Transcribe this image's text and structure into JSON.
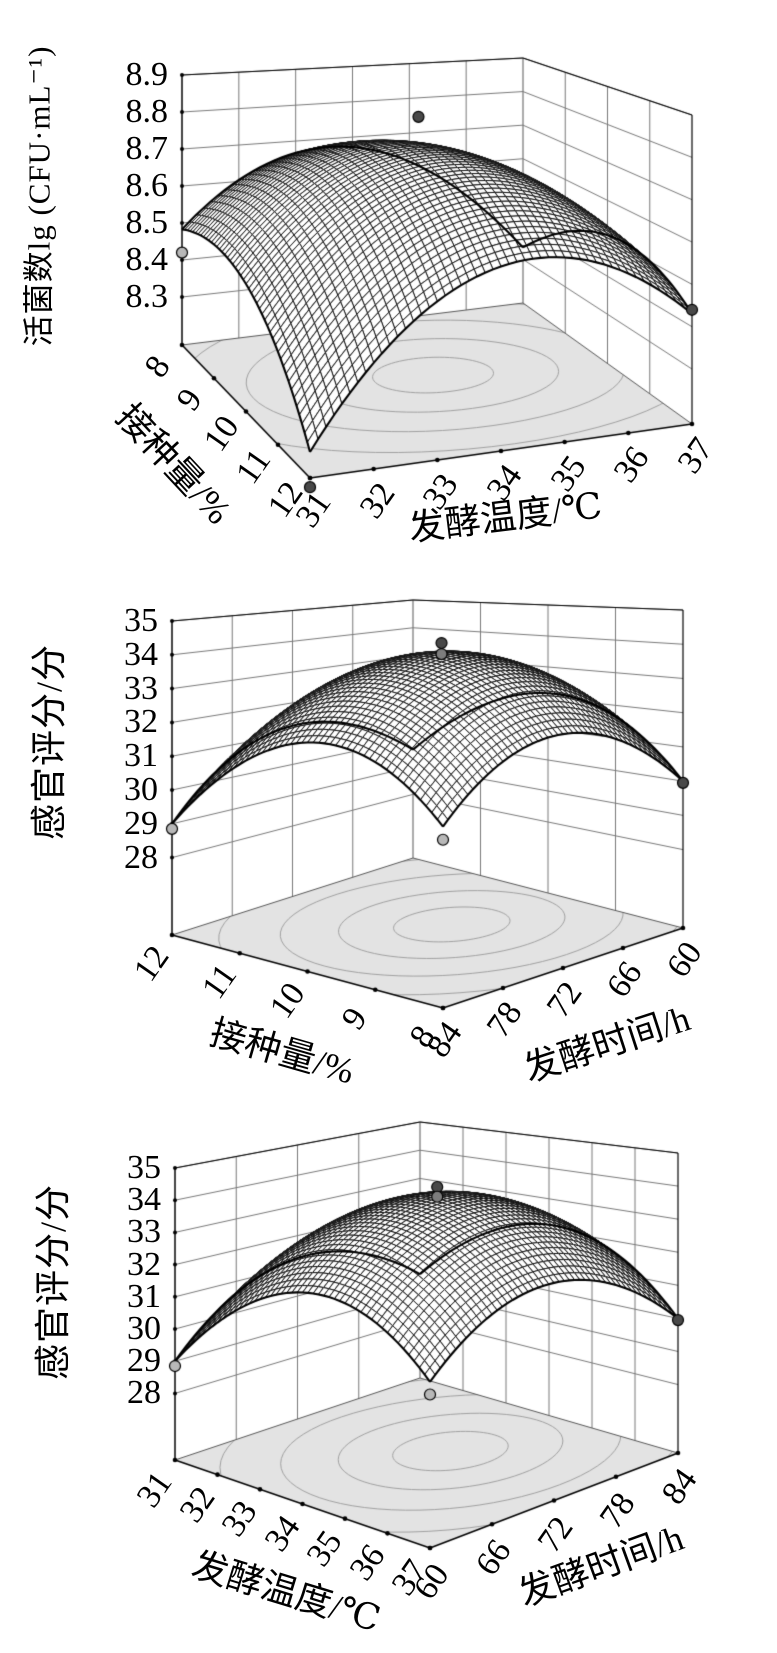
{
  "figure": {
    "description": "Three black-and-white 3D response-surface plots (mesh surface over contour floor) stacked vertically",
    "panel_count": 3
  },
  "colors": {
    "background": "#ffffff",
    "floor_fill": "#e3e3e3",
    "contour_line": "#a0a0a0",
    "wall_grid": "#777777",
    "frame": "#000000",
    "mesh_line": "#111111",
    "mesh_cell": "#ffffff",
    "marker_dark": "#484848",
    "marker_mid": "#7d7d7d",
    "marker_light": "#b8b8b8"
  },
  "chart_data": [
    {
      "type": "surface3d",
      "z_axis": {
        "label": "活菌数lg (CFU·mL⁻¹)",
        "ticks": [
          8.3,
          8.4,
          8.5,
          8.6,
          8.7,
          8.8,
          8.9
        ],
        "range": [
          8.3,
          8.9
        ]
      },
      "left_axis": {
        "label": "接种量/%",
        "ticks": [
          8,
          9,
          10,
          11,
          12
        ]
      },
      "right_axis": {
        "label": "发酵温度/℃",
        "ticks": [
          31,
          32,
          33,
          34,
          35,
          36,
          37
        ]
      },
      "surface_model": {
        "form": "z = zp + A*(s-s0)^2 + B*(t-t0)^2 + C*(s-s0)*(t-t0); s: right axis 31→37, t: left axis 8→12",
        "zp": 8.76,
        "s0": 0.5,
        "t0": 0.42,
        "A": -1.05,
        "B": -0.5,
        "C": 0.35,
        "corner_values": {
          "temp31_inoc8": 8.48,
          "temp31_inoc12": 8.23,
          "temp37_inoc12": 8.43,
          "temp37_inoc8": 8.34
        },
        "peak_value": 8.76
      },
      "design_points": [
        {
          "x": 31,
          "y": 8,
          "z": 8.42,
          "shade": "light"
        },
        {
          "x": 31,
          "y": 12,
          "z": 8.15,
          "shade": "dark"
        },
        {
          "x": 37,
          "y": 12,
          "z": 8.44,
          "shade": "dark"
        },
        {
          "x": 34.3,
          "y": 9.3,
          "z": 8.82,
          "shade": "dark"
        }
      ],
      "floor_contours": {
        "center_s": 0.55,
        "center_t": 0.42,
        "radii": [
          0.16,
          0.33,
          0.5,
          0.68
        ]
      }
    },
    {
      "type": "surface3d",
      "z_axis": {
        "label": "感官评分/分",
        "ticks": [
          28,
          29,
          30,
          31,
          32,
          33,
          34,
          35
        ],
        "range": [
          28,
          35
        ]
      },
      "left_axis": {
        "label": "接种量/%",
        "ticks": [
          12,
          11,
          10,
          9,
          8
        ]
      },
      "right_axis": {
        "label": "发酵时间/h",
        "ticks": [
          84,
          78,
          72,
          66,
          60
        ]
      },
      "surface_model": {
        "form": "z = zp + A*(s-s0)^2 + B*(t-t0)^2 + C*(s-s0)*(t-t0); s: right axis 84→60, t: left axis 12→8",
        "zp": 34.1,
        "s0": 0.5,
        "t0": 0.55,
        "A": -7.8,
        "B": -9.4,
        "C": -1.11,
        "corner_values": {
          "time84_inoc12": 29.0,
          "time84_inoc8": 30.5,
          "time60_inoc8": 30.0,
          "time60_inoc12": 29.6
        },
        "peak_value": 34.1
      },
      "design_points": [
        {
          "x": 84,
          "y": 12,
          "z": 28.85,
          "shade": "light"
        },
        {
          "x": 84,
          "y": 8,
          "z": 30.15,
          "shade": "light"
        },
        {
          "x": 60,
          "y": 8,
          "z": 29.95,
          "shade": "dark"
        },
        {
          "x": 71.3,
          "y": 9.9,
          "z": 34.35,
          "shade": "dark"
        },
        {
          "x": 71.3,
          "y": 9.9,
          "z": 34.02,
          "shade": "mid"
        }
      ],
      "floor_contours": {
        "center_s": 0.6,
        "center_t": 0.5,
        "radii": [
          0.18,
          0.35,
          0.53,
          0.72
        ]
      }
    },
    {
      "type": "surface3d",
      "z_axis": {
        "label": "感官评分/分",
        "ticks": [
          28,
          29,
          30,
          31,
          32,
          33,
          34,
          35
        ],
        "range": [
          28,
          35
        ]
      },
      "left_axis": {
        "label": "发酵温度/℃",
        "ticks": [
          31,
          32,
          33,
          34,
          35,
          36,
          37
        ]
      },
      "right_axis": {
        "label": "发酵时间/h",
        "ticks": [
          60,
          66,
          72,
          78,
          84
        ]
      },
      "surface_model": {
        "form": "z = zp + A*(s-s0)^2 + B*(t-t0)^2 + C*(s-s0)*(t-t0); s: right axis 60→84, t: left axis 31→37",
        "zp": 34.1,
        "s0": 0.5,
        "t0": 0.55,
        "A": -7.8,
        "B": -9.4,
        "C": -1.11,
        "corner_values": {
          "time60_temp31": 29.0,
          "time60_temp37": 30.5,
          "time84_temp37": 30.0,
          "time84_temp31": 29.6
        },
        "peak_value": 34.1
      },
      "design_points": [
        {
          "x": 60,
          "y": 31,
          "z": 28.85,
          "shade": "light"
        },
        {
          "x": 60,
          "y": 37,
          "z": 30.15,
          "shade": "light"
        },
        {
          "x": 84,
          "y": 37,
          "z": 29.95,
          "shade": "dark"
        },
        {
          "x": 72.7,
          "y": 34.1,
          "z": 34.3,
          "shade": "dark"
        },
        {
          "x": 72.7,
          "y": 34.1,
          "z": 34.0,
          "shade": "mid"
        }
      ],
      "floor_contours": {
        "center_s": 0.6,
        "center_t": 0.5,
        "radii": [
          0.18,
          0.35,
          0.53,
          0.72
        ]
      }
    }
  ]
}
